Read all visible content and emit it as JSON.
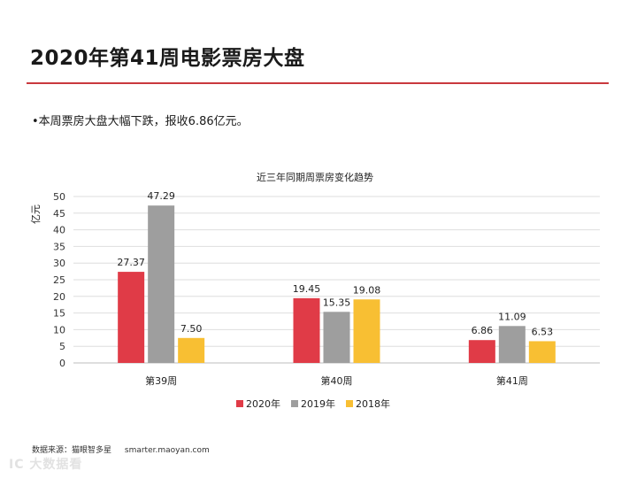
{
  "page": {
    "title": "2020年第41周电影票房大盘",
    "bullet": "•本周票房大盘大幅下跌，报收6.86亿元。",
    "source_label": "数据来源：猫眼智多星",
    "source_url": "smarter.maoyan.com",
    "watermark": "IC 大数据看"
  },
  "colors": {
    "accent": "#c9393e",
    "series_2020": "#e03b47",
    "series_2019": "#9e9e9e",
    "series_2018": "#f8bf33"
  },
  "chart_data": {
    "type": "bar",
    "title": "近三年同期周票房变化趋势",
    "ylabel": "亿元",
    "xlabel": "",
    "ylim": [
      0,
      50
    ],
    "yticks": [
      "0",
      "5",
      "10",
      "15",
      "20",
      "25",
      "30",
      "35",
      "40",
      "45",
      "50"
    ],
    "grid": true,
    "legend_position": "bottom",
    "categories": [
      "第39周",
      "第40周",
      "第41周"
    ],
    "series": [
      {
        "name": "2020年",
        "values": [
          27.37,
          19.45,
          6.86
        ],
        "labels": [
          "27.37",
          "19.45",
          "6.86"
        ]
      },
      {
        "name": "2019年",
        "values": [
          47.29,
          15.35,
          11.09
        ],
        "labels": [
          "47.29",
          "15.35",
          "11.09"
        ]
      },
      {
        "name": "2018年",
        "values": [
          7.5,
          19.08,
          6.53
        ],
        "labels": [
          "7.50",
          "19.08",
          "6.53"
        ]
      }
    ]
  }
}
